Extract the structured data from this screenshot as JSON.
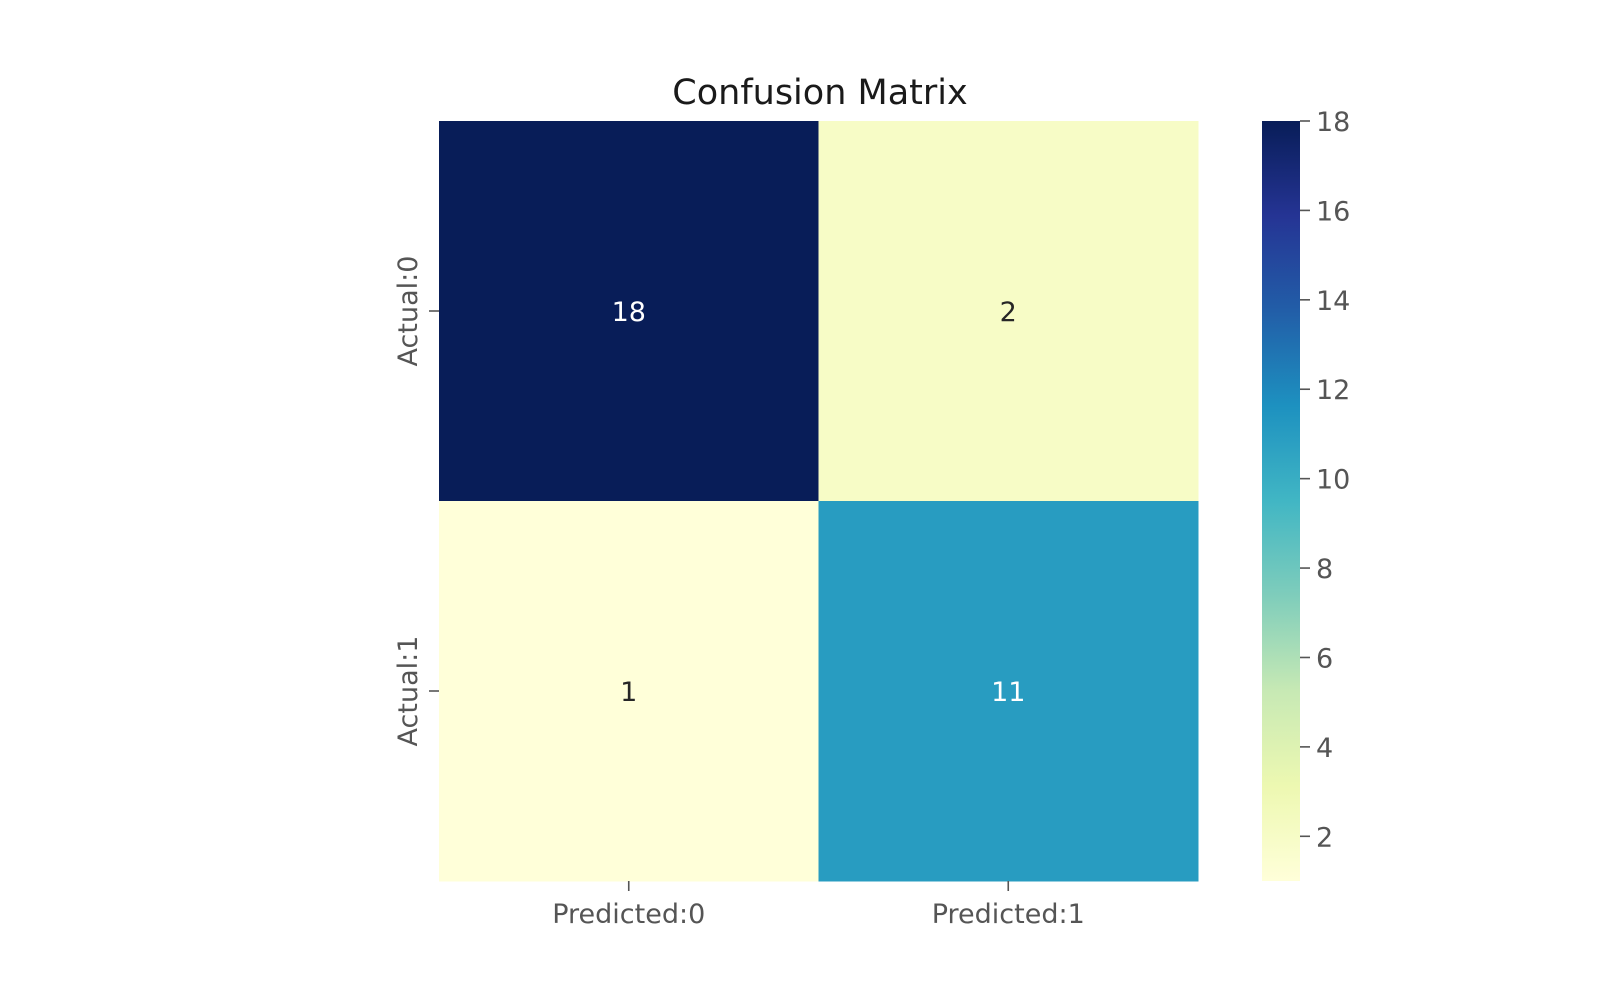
{
  "chart_data": {
    "type": "heatmap",
    "title": "Confusion Matrix",
    "x_categories": [
      "Predicted:0",
      "Predicted:1"
    ],
    "y_categories": [
      "Actual:0",
      "Actual:1"
    ],
    "values": [
      [
        18,
        2
      ],
      [
        1,
        11
      ]
    ],
    "annotations": true,
    "colormap": "YlGnBu",
    "colorbar": {
      "min": 1,
      "max": 18,
      "ticks": [
        2,
        4,
        6,
        8,
        10,
        12,
        14,
        16,
        18
      ],
      "placement": "right"
    },
    "grid": false
  }
}
